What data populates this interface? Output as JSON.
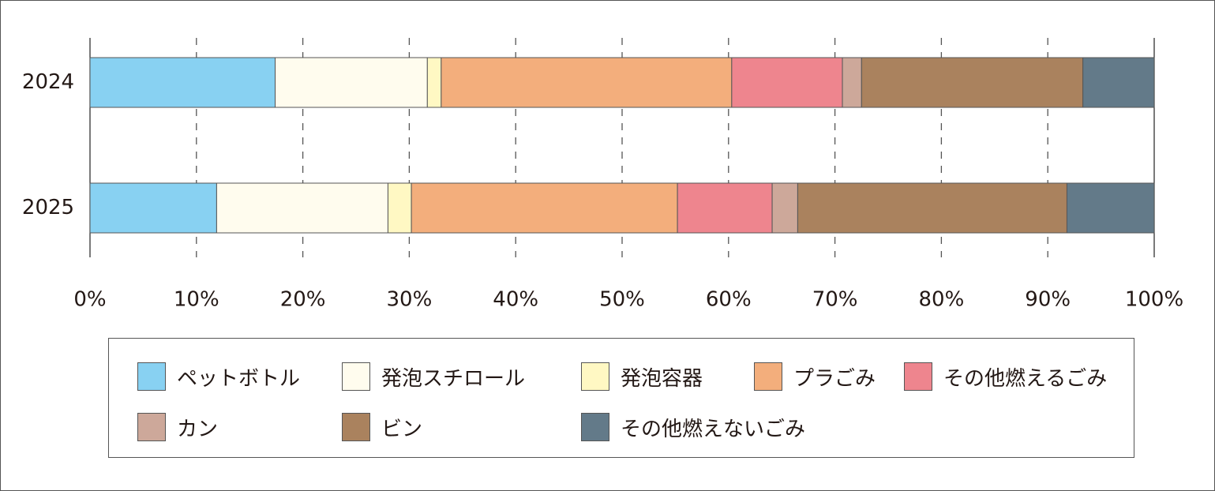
{
  "chart_data": {
    "type": "bar",
    "orientation": "horizontal",
    "stacked": true,
    "categories": [
      "2024",
      "2025"
    ],
    "x_ticks": [
      "0%",
      "10%",
      "20%",
      "30%",
      "40%",
      "50%",
      "60%",
      "70%",
      "80%",
      "90%",
      "100%"
    ],
    "xlim": [
      0,
      100
    ],
    "grid": "dashed vertical",
    "legend_position": "bottom",
    "series": [
      {
        "name": "ペットボトル",
        "color": "#88D1F2",
        "values": [
          17.4,
          11.9
        ]
      },
      {
        "name": "発泡スチロール",
        "color": "#FFFCEE",
        "values": [
          14.3,
          16.1
        ]
      },
      {
        "name": "発泡容器",
        "color": "#FFF8C3",
        "values": [
          1.3,
          2.2
        ]
      },
      {
        "name": "プラごみ",
        "color": "#F3AE7C",
        "values": [
          27.3,
          25.0
        ]
      },
      {
        "name": "その他燃えるごみ",
        "color": "#EE858E",
        "values": [
          10.4,
          8.9
        ]
      },
      {
        "name": "カン",
        "color": "#CDA89A",
        "values": [
          1.8,
          2.4
        ]
      },
      {
        "name": "ビン",
        "color": "#AA825E",
        "values": [
          20.8,
          25.3
        ]
      },
      {
        "name": "その他燃えないごみ",
        "color": "#637A89",
        "values": [
          6.7,
          8.2
        ]
      }
    ]
  }
}
